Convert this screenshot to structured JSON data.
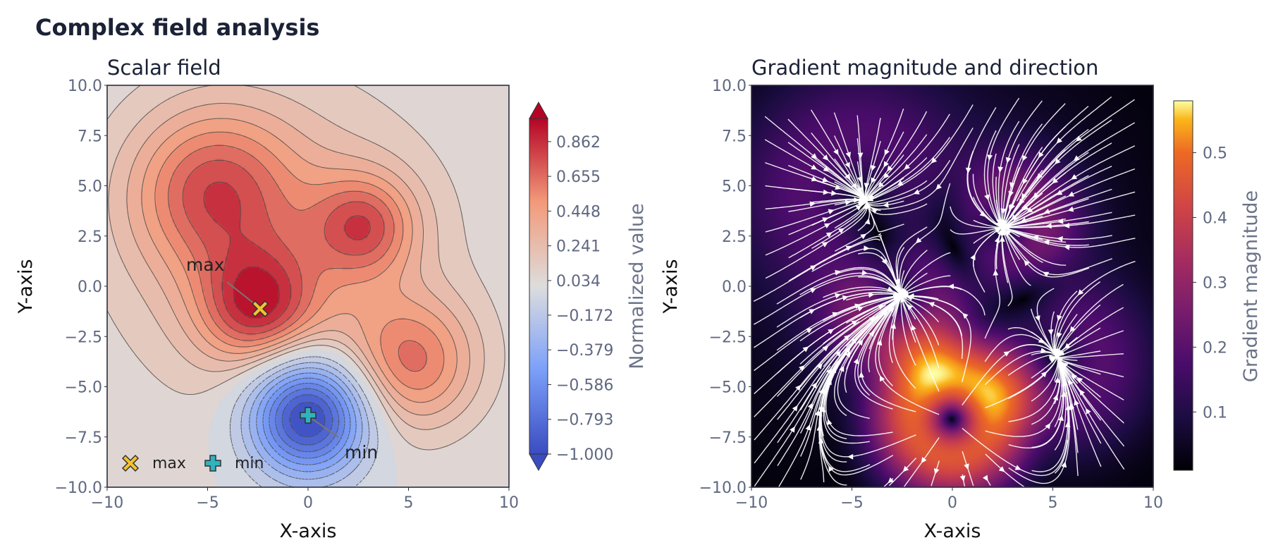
{
  "figure": {
    "title": "Complex field analysis",
    "colors": {
      "title": "#1b2236",
      "tick": "#5f6880",
      "stream": "#ffffff",
      "contour": "#4a4a4a"
    }
  },
  "chart_data": [
    {
      "type": "contour",
      "title": "Scalar field",
      "xlabel": "X-axis",
      "ylabel": "Y-axis",
      "xlim": [
        -10,
        10
      ],
      "ylim": [
        -10,
        10
      ],
      "xticks": [
        "−10",
        "−5",
        "0",
        "5",
        "10"
      ],
      "yticks": [
        "10.0",
        "7.5",
        "5.0",
        "2.5",
        "0.0",
        "−2.5",
        "−5.0",
        "−7.5",
        "−10.0"
      ],
      "colormap": "coolwarm",
      "colorbar": {
        "label": "Normalized value",
        "ticks": [
          "0.862",
          "0.655",
          "0.448",
          "0.241",
          "0.034",
          "−0.172",
          "−0.379",
          "−0.586",
          "−0.793",
          "−1.000"
        ],
        "range": [
          -1.0,
          1.0
        ],
        "extend": "both"
      },
      "field_sources": [
        {
          "x": -2.5,
          "y": -1.0,
          "amp": 0.65,
          "sigma": 2.0
        },
        {
          "x": -4.8,
          "y": 4.8,
          "amp": 0.55,
          "sigma": 2.8
        },
        {
          "x": 2.8,
          "y": 3.0,
          "amp": 0.55,
          "sigma": 1.8
        },
        {
          "x": 5.2,
          "y": -3.8,
          "amp": 0.55,
          "sigma": 2.3
        },
        {
          "x": 0.0,
          "y": -6.5,
          "amp": -1.6,
          "sigma": 2.0
        },
        {
          "x": -1.5,
          "y": 2.0,
          "amp": 0.35,
          "sigma": 5.5
        }
      ],
      "markers": [
        {
          "label": "max",
          "x": -2.3,
          "y": -1.1,
          "symbol": "X",
          "color": "#f2c230"
        },
        {
          "label": "min",
          "x": 0.0,
          "y": -6.4,
          "symbol": "+",
          "color": "#2fb3bd"
        }
      ],
      "annotations": [
        {
          "text": "max",
          "x": -5.0,
          "y": 0.9,
          "arrow_to": [
            -2.3,
            -1.1
          ]
        },
        {
          "text": "min",
          "x": 2.8,
          "y": -8.5,
          "arrow_to": [
            0.0,
            -6.4
          ]
        }
      ],
      "legend": {
        "position": "bottom-left",
        "entries": [
          "max",
          "min"
        ]
      }
    },
    {
      "type": "heatmap",
      "title": "Gradient magnitude and direction",
      "xlabel": "X-axis",
      "ylabel": "Y-axis",
      "xlim": [
        -10,
        10
      ],
      "ylim": [
        -10,
        10
      ],
      "xticks": [
        "−10",
        "−5",
        "0",
        "5",
        "10"
      ],
      "yticks": [
        "10.0",
        "7.5",
        "5.0",
        "2.5",
        "0.0",
        "−2.5",
        "−5.0",
        "−7.5",
        "−10.0"
      ],
      "colormap": "inferno",
      "colorbar": {
        "label": "Gradient magnitude",
        "ticks": [
          "0.5",
          "0.4",
          "0.3",
          "0.2",
          "0.1"
        ],
        "range": [
          0.01,
          0.58
        ]
      },
      "overlay": "streamlines"
    }
  ]
}
